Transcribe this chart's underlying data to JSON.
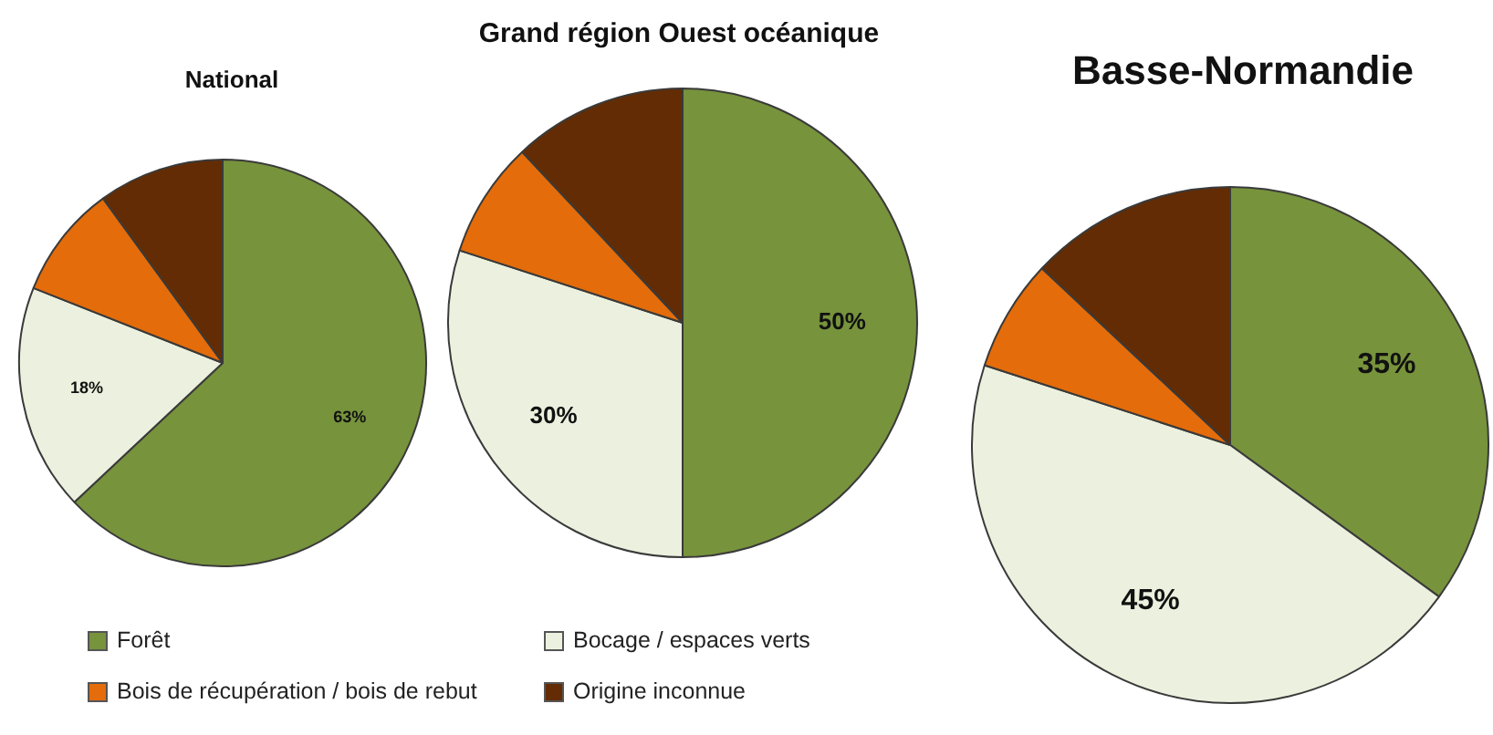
{
  "chart_data": [
    {
      "type": "pie",
      "title": "National",
      "categories": [
        "Forêt",
        "Bocage / espaces verts",
        "Bois de récupération / bois de rebut",
        "Origine inconnue"
      ],
      "values": [
        63,
        18,
        9,
        10
      ],
      "colors": [
        "#77933c",
        "#ebf1de",
        "#e46c0a",
        "#632c04"
      ],
      "value_labels": [
        "63%",
        "18%",
        null,
        null
      ],
      "legend": "bottom"
    },
    {
      "type": "pie",
      "title": "Grand région Ouest océanique",
      "categories": [
        null,
        null,
        null,
        null
      ],
      "values": [
        50,
        30,
        8,
        12
      ],
      "colors": [
        "#77933c",
        "#ebf1de",
        "#e46c0a",
        "#632c04"
      ],
      "value_labels": [
        "50%",
        "30%",
        null,
        null
      ]
    },
    {
      "type": "pie",
      "title": "Basse-Normandie",
      "categories": [
        null,
        null,
        null,
        null
      ],
      "values": [
        35,
        45,
        7,
        13
      ],
      "colors": [
        "#77933c",
        "#ebf1de",
        "#e46c0a",
        "#632c04"
      ],
      "value_labels": [
        "35%",
        "45%",
        null,
        null
      ]
    }
  ]
}
